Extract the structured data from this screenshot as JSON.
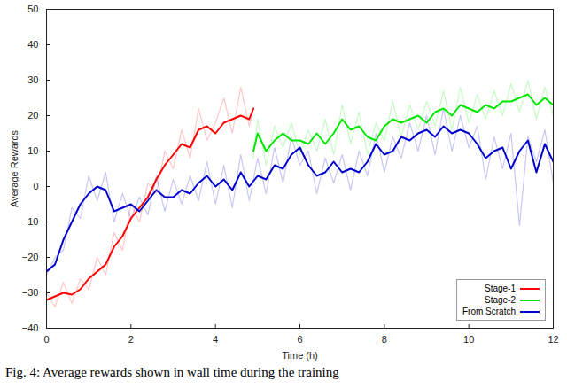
{
  "chart_data": {
    "type": "line",
    "xlabel": "Time (h)",
    "ylabel": "Average Rewards",
    "caption": "Fig. 4: Average rewards shown in wall time during the training",
    "xlim": [
      0,
      12
    ],
    "xticks": [
      0,
      2,
      4,
      6,
      8,
      10,
      12
    ],
    "ylim": [
      -40,
      50
    ],
    "yticks": [
      -40,
      -30,
      -20,
      -10,
      0,
      10,
      20,
      30,
      40,
      50
    ],
    "grid": false,
    "legend": "lower right",
    "series": [
      {
        "name": "Stage-1",
        "color": "#ff0000",
        "x": [
          0,
          0.2,
          0.4,
          0.6,
          0.8,
          1.0,
          1.2,
          1.4,
          1.6,
          1.8,
          2.0,
          2.2,
          2.4,
          2.6,
          2.8,
          3.0,
          3.2,
          3.4,
          3.6,
          3.8,
          4.0,
          4.2,
          4.4,
          4.6,
          4.8,
          4.9
        ],
        "values": [
          -32,
          -31,
          -30,
          -30.5,
          -29,
          -26,
          -24,
          -22,
          -17,
          -14,
          -9,
          -6,
          -3,
          2,
          6,
          9,
          12,
          11,
          16,
          17,
          15,
          18,
          19,
          20,
          19,
          22
        ],
        "raw_values": [
          -30,
          -34,
          -27,
          -33,
          -26,
          -29,
          -20,
          -25,
          -13,
          -18,
          -5,
          -10,
          1,
          -2,
          10,
          5,
          16,
          8,
          22,
          13,
          18,
          25,
          15,
          28,
          17,
          22
        ]
      },
      {
        "name": "Stage-2",
        "color": "#00e600",
        "x": [
          4.9,
          5.0,
          5.2,
          5.4,
          5.6,
          5.8,
          6.0,
          6.2,
          6.4,
          6.6,
          6.8,
          7.0,
          7.2,
          7.4,
          7.6,
          7.8,
          8.0,
          8.2,
          8.4,
          8.6,
          8.8,
          9.0,
          9.2,
          9.4,
          9.6,
          9.8,
          10.0,
          10.2,
          10.4,
          10.6,
          10.8,
          11.0,
          11.2,
          11.4,
          11.6,
          11.8,
          12.0
        ],
        "values": [
          10,
          15,
          10,
          13,
          15,
          13,
          13,
          12,
          15,
          12,
          15,
          19,
          16,
          17,
          14,
          13,
          17,
          19,
          18,
          19,
          20,
          18,
          21,
          22,
          20,
          23,
          22,
          21,
          23,
          22,
          24,
          24,
          25,
          26,
          23,
          25,
          23
        ],
        "raw_values": [
          8,
          19,
          6,
          17,
          11,
          18,
          9,
          16,
          10,
          19,
          9,
          23,
          12,
          21,
          9,
          18,
          13,
          24,
          14,
          23,
          16,
          24,
          17,
          27,
          16,
          28,
          18,
          26,
          19,
          27,
          20,
          29,
          21,
          30,
          19,
          28,
          20
        ]
      },
      {
        "name": "From Scratch",
        "color": "#0000cc",
        "x": [
          0,
          0.2,
          0.4,
          0.6,
          0.8,
          1.0,
          1.2,
          1.4,
          1.6,
          1.8,
          2.0,
          2.2,
          2.4,
          2.6,
          2.8,
          3.0,
          3.2,
          3.4,
          3.6,
          3.8,
          4.0,
          4.2,
          4.4,
          4.6,
          4.8,
          5.0,
          5.2,
          5.4,
          5.6,
          5.8,
          6.0,
          6.2,
          6.4,
          6.6,
          6.8,
          7.0,
          7.2,
          7.4,
          7.6,
          7.8,
          8.0,
          8.2,
          8.4,
          8.6,
          8.8,
          9.0,
          9.2,
          9.4,
          9.6,
          9.8,
          10.0,
          10.2,
          10.4,
          10.6,
          10.8,
          11.0,
          11.2,
          11.4,
          11.6,
          11.8,
          12.0
        ],
        "values": [
          -24,
          -22,
          -15,
          -10,
          -5,
          -2,
          0,
          -1,
          -7,
          -6,
          -5,
          -7,
          -4,
          -1,
          -3,
          -3,
          -1,
          -2,
          1,
          3,
          0,
          2,
          -1,
          4,
          0,
          3,
          2,
          6,
          5,
          9,
          11,
          6,
          3,
          4,
          7,
          4,
          5,
          4,
          7,
          12,
          9,
          10,
          14,
          13,
          15,
          16,
          14,
          17,
          15,
          16,
          15,
          12,
          8,
          10,
          11,
          5,
          10,
          13,
          4,
          12,
          7
        ],
        "raw_values": [
          -25,
          -20,
          -18,
          -6,
          -9,
          3,
          -4,
          4,
          -10,
          -2,
          -9,
          -3,
          -8,
          3,
          -7,
          2,
          -5,
          3,
          -4,
          7,
          -5,
          6,
          -6,
          9,
          -4,
          8,
          -2,
          11,
          1,
          14,
          6,
          10,
          -2,
          8,
          1,
          9,
          -1,
          10,
          3,
          15,
          4,
          14,
          8,
          18,
          10,
          20,
          9,
          22,
          10,
          20,
          11,
          17,
          2,
          14,
          5,
          15,
          -11,
          14,
          7,
          16,
          1
        ]
      }
    ]
  }
}
